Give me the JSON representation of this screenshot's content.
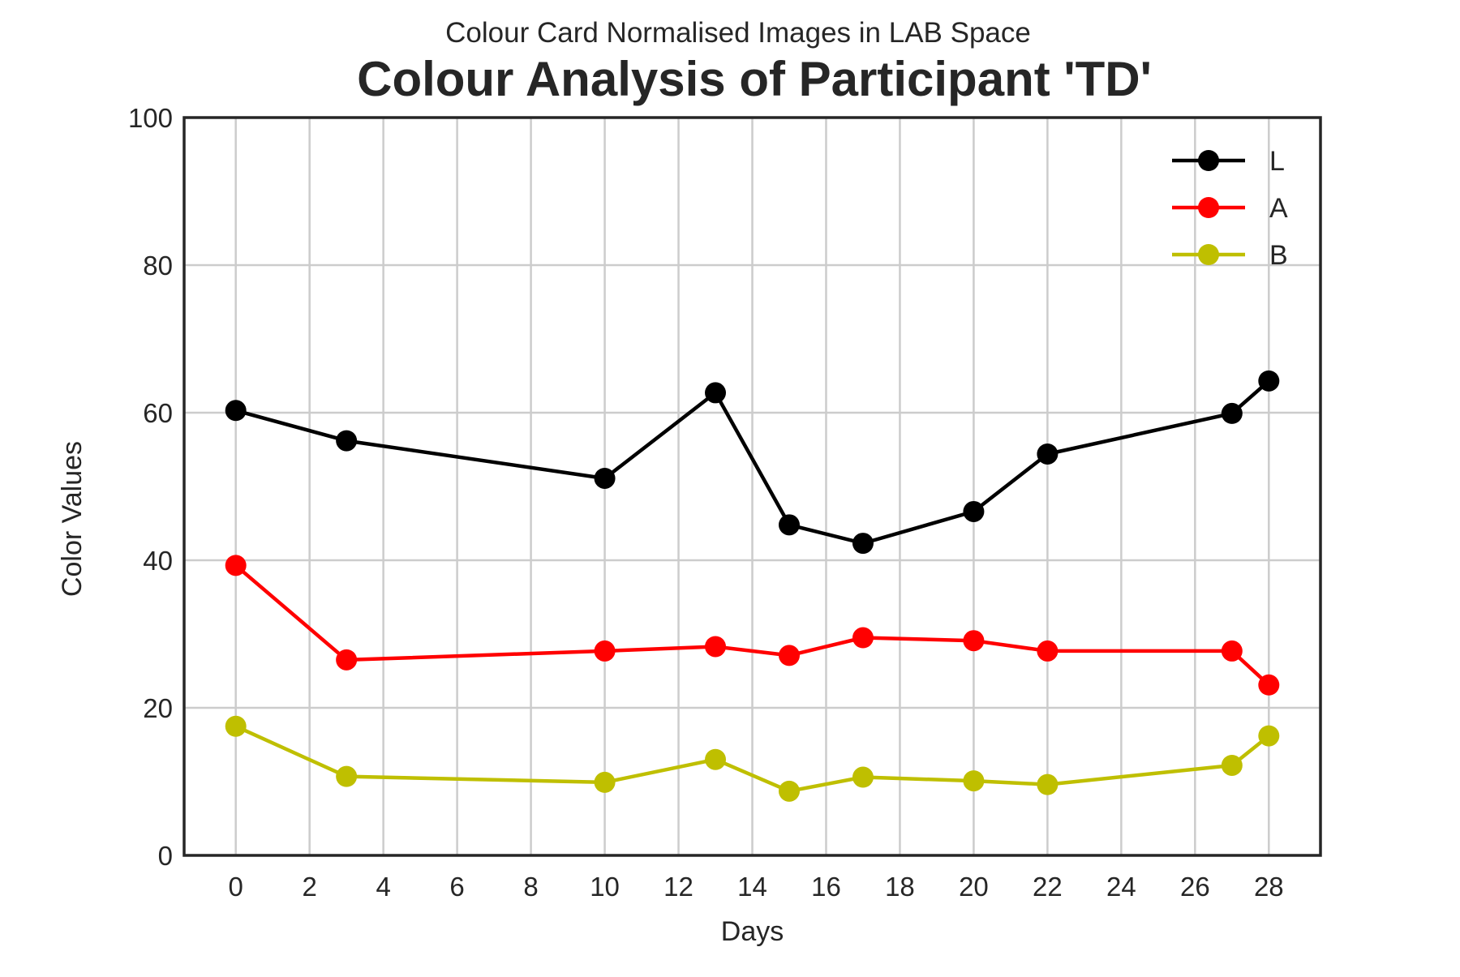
{
  "chart_data": {
    "type": "line",
    "subtitle": "Colour Card Normalised Images in LAB Space",
    "title": "Colour Analysis of Participant 'TD'",
    "xlabel": "Days",
    "ylabel": "Color Values",
    "xlim": [
      -1.4,
      29.4
    ],
    "ylim": [
      0,
      100
    ],
    "xticks": [
      0,
      2,
      4,
      6,
      8,
      10,
      12,
      14,
      16,
      18,
      20,
      22,
      24,
      26,
      28
    ],
    "yticks": [
      0,
      20,
      40,
      60,
      80,
      100
    ],
    "grid": true,
    "legend_position": "top-right",
    "x": [
      0,
      3,
      10,
      13,
      15,
      17,
      20,
      22,
      27,
      28
    ],
    "series": [
      {
        "name": "L",
        "color": "#000000",
        "values": [
          60.3,
          56.2,
          51.1,
          62.7,
          44.8,
          42.3,
          46.6,
          54.4,
          59.9,
          64.3
        ]
      },
      {
        "name": "A",
        "color": "#ff0000",
        "values": [
          39.3,
          26.5,
          27.7,
          28.3,
          27.1,
          29.5,
          29.1,
          27.7,
          27.7,
          23.1
        ]
      },
      {
        "name": "B",
        "color": "#bfbf00",
        "values": [
          17.5,
          10.7,
          9.9,
          13.0,
          8.7,
          10.6,
          10.1,
          9.6,
          12.2,
          16.2
        ]
      }
    ]
  }
}
